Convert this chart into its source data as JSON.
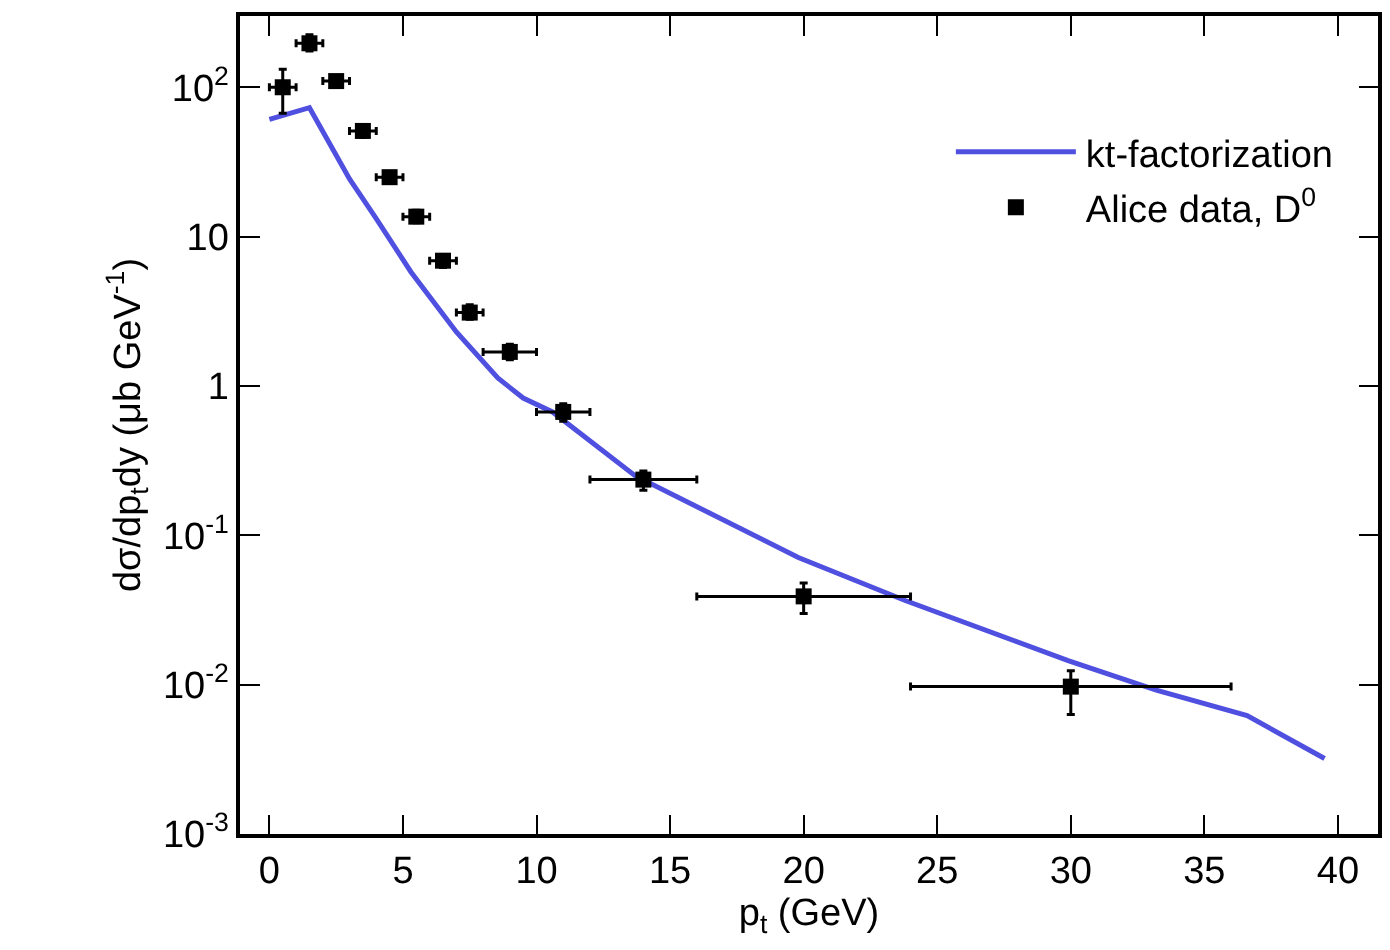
{
  "chart_data": {
    "type": "scatter",
    "xlabel": "p$_{t}$ (GeV)",
    "ylabel": "dσ/dp$_{t}$dy (μb GeV$^{-1}$)",
    "log": "y",
    "xlim": [
      -1.1,
      41.5
    ],
    "ylim": [
      0.001,
      300
    ],
    "xticks": [
      0,
      5,
      10,
      15,
      20,
      25,
      30,
      35,
      40
    ],
    "yticks": [
      {
        "value": 0.001,
        "label": "10$^{-3}$"
      },
      {
        "value": 0.01,
        "label": "10$^{-2}$"
      },
      {
        "value": 0.1,
        "label": "10$^{-1}$"
      },
      1,
      10,
      {
        "value": 100,
        "label": "10$^{2}$"
      }
    ],
    "legend": "top right",
    "series": [
      {
        "name": "kt-factorization",
        "type": "line",
        "color": "#5050e0",
        "line_style": "solid",
        "marker": "none",
        "x": [
          0,
          1.5,
          3,
          4,
          5.3,
          7,
          8.55,
          9.5,
          10.6,
          13.7,
          19.8,
          23.8,
          29.9,
          33.2,
          36.6,
          39.5
        ],
        "values": [
          61,
          73,
          24.3,
          13.2,
          5.8,
          2.3,
          1.13,
          0.83,
          0.67,
          0.25,
          0.071,
          0.0366,
          0.0145,
          0.0092,
          0.0062,
          0.0032
        ]
      },
      {
        "name": "Alice data, D$^{0}$",
        "color": "#000000",
        "marker": "square",
        "x": [
          0.5,
          1.5,
          2.5,
          3.5,
          4.5,
          5.5,
          6.5,
          7.5,
          9,
          11,
          14,
          20,
          30
        ],
        "values": [
          100,
          197,
          110,
          51,
          25,
          13.6,
          6.9,
          3.1,
          1.69,
          0.67,
          0.236,
          0.039,
          0.0097
        ],
        "errors": [
          [
            67,
            132
          ],
          [
            175,
            225
          ],
          null,
          [
            46,
            56
          ],
          null,
          [
            12.4,
            15
          ],
          [
            6.2,
            7.6
          ],
          [
            2.8,
            3.5
          ],
          [
            1.5,
            1.9
          ],
          [
            0.58,
            0.76
          ],
          [
            0.2,
            0.27
          ],
          [
            0.03,
            0.048
          ],
          [
            0.0063,
            0.0124
          ]
        ],
        "xerrors": [
          0.5,
          0.5,
          0.5,
          0.5,
          0.5,
          0.5,
          0.5,
          0.5,
          1,
          1,
          2,
          4,
          6
        ]
      }
    ]
  }
}
